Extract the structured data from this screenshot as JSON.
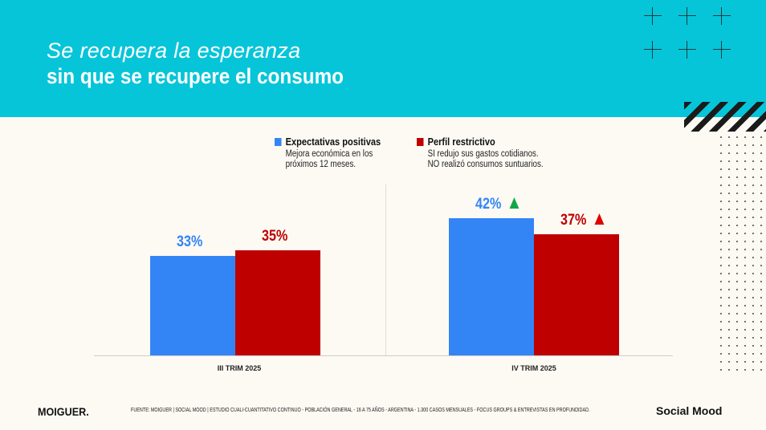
{
  "header": {
    "title_line1": "Se recupera la esperanza",
    "title_line2": "sin que se recupere el consumo"
  },
  "chart_data": {
    "type": "bar",
    "categories": [
      "III TRIM 2025",
      "IV TRIM 2025"
    ],
    "series": [
      {
        "name": "Expectativas positivas",
        "description": "Mejora económica en los próximos 12 meses.",
        "color": "#3385f5",
        "values": [
          33,
          42
        ],
        "labels": [
          "33%",
          "42%"
        ],
        "trend": [
          null,
          "up"
        ]
      },
      {
        "name": "Perfil restrictivo",
        "description": "SI redujo sus gastos cotidianos. NO realizó consumos suntuarios.",
        "color": "#be0000",
        "values": [
          35,
          37
        ],
        "labels": [
          "35%",
          "37%"
        ],
        "trend": [
          null,
          "up"
        ]
      }
    ],
    "legend": {
      "position": "top",
      "desc_lines": [
        [
          "Mejora económica en los",
          "próximos 12 meses."
        ],
        [
          "SI redujo sus gastos cotidianos.",
          "NO realizó consumos suntuarios."
        ]
      ]
    },
    "trend_colors": {
      "up_blue": "#12a84a",
      "up_red": "#e00000"
    },
    "grid": false
  },
  "footer": {
    "logo": "MOIGUER.",
    "source": "FUENTE: MOIGUER | SOCIAL MOOD | ESTUDIO CUALI-CUANTITATIVO CONTINUO - POBLACIÓN GENERAL - 16 A 75 AÑOS - ARGENTINA - 1.300 CASOS MENSUALES - FOCUS GROUPS & ENTREVISTAS EN PROFUNDIDAD.",
    "brand": "Social Mood"
  }
}
